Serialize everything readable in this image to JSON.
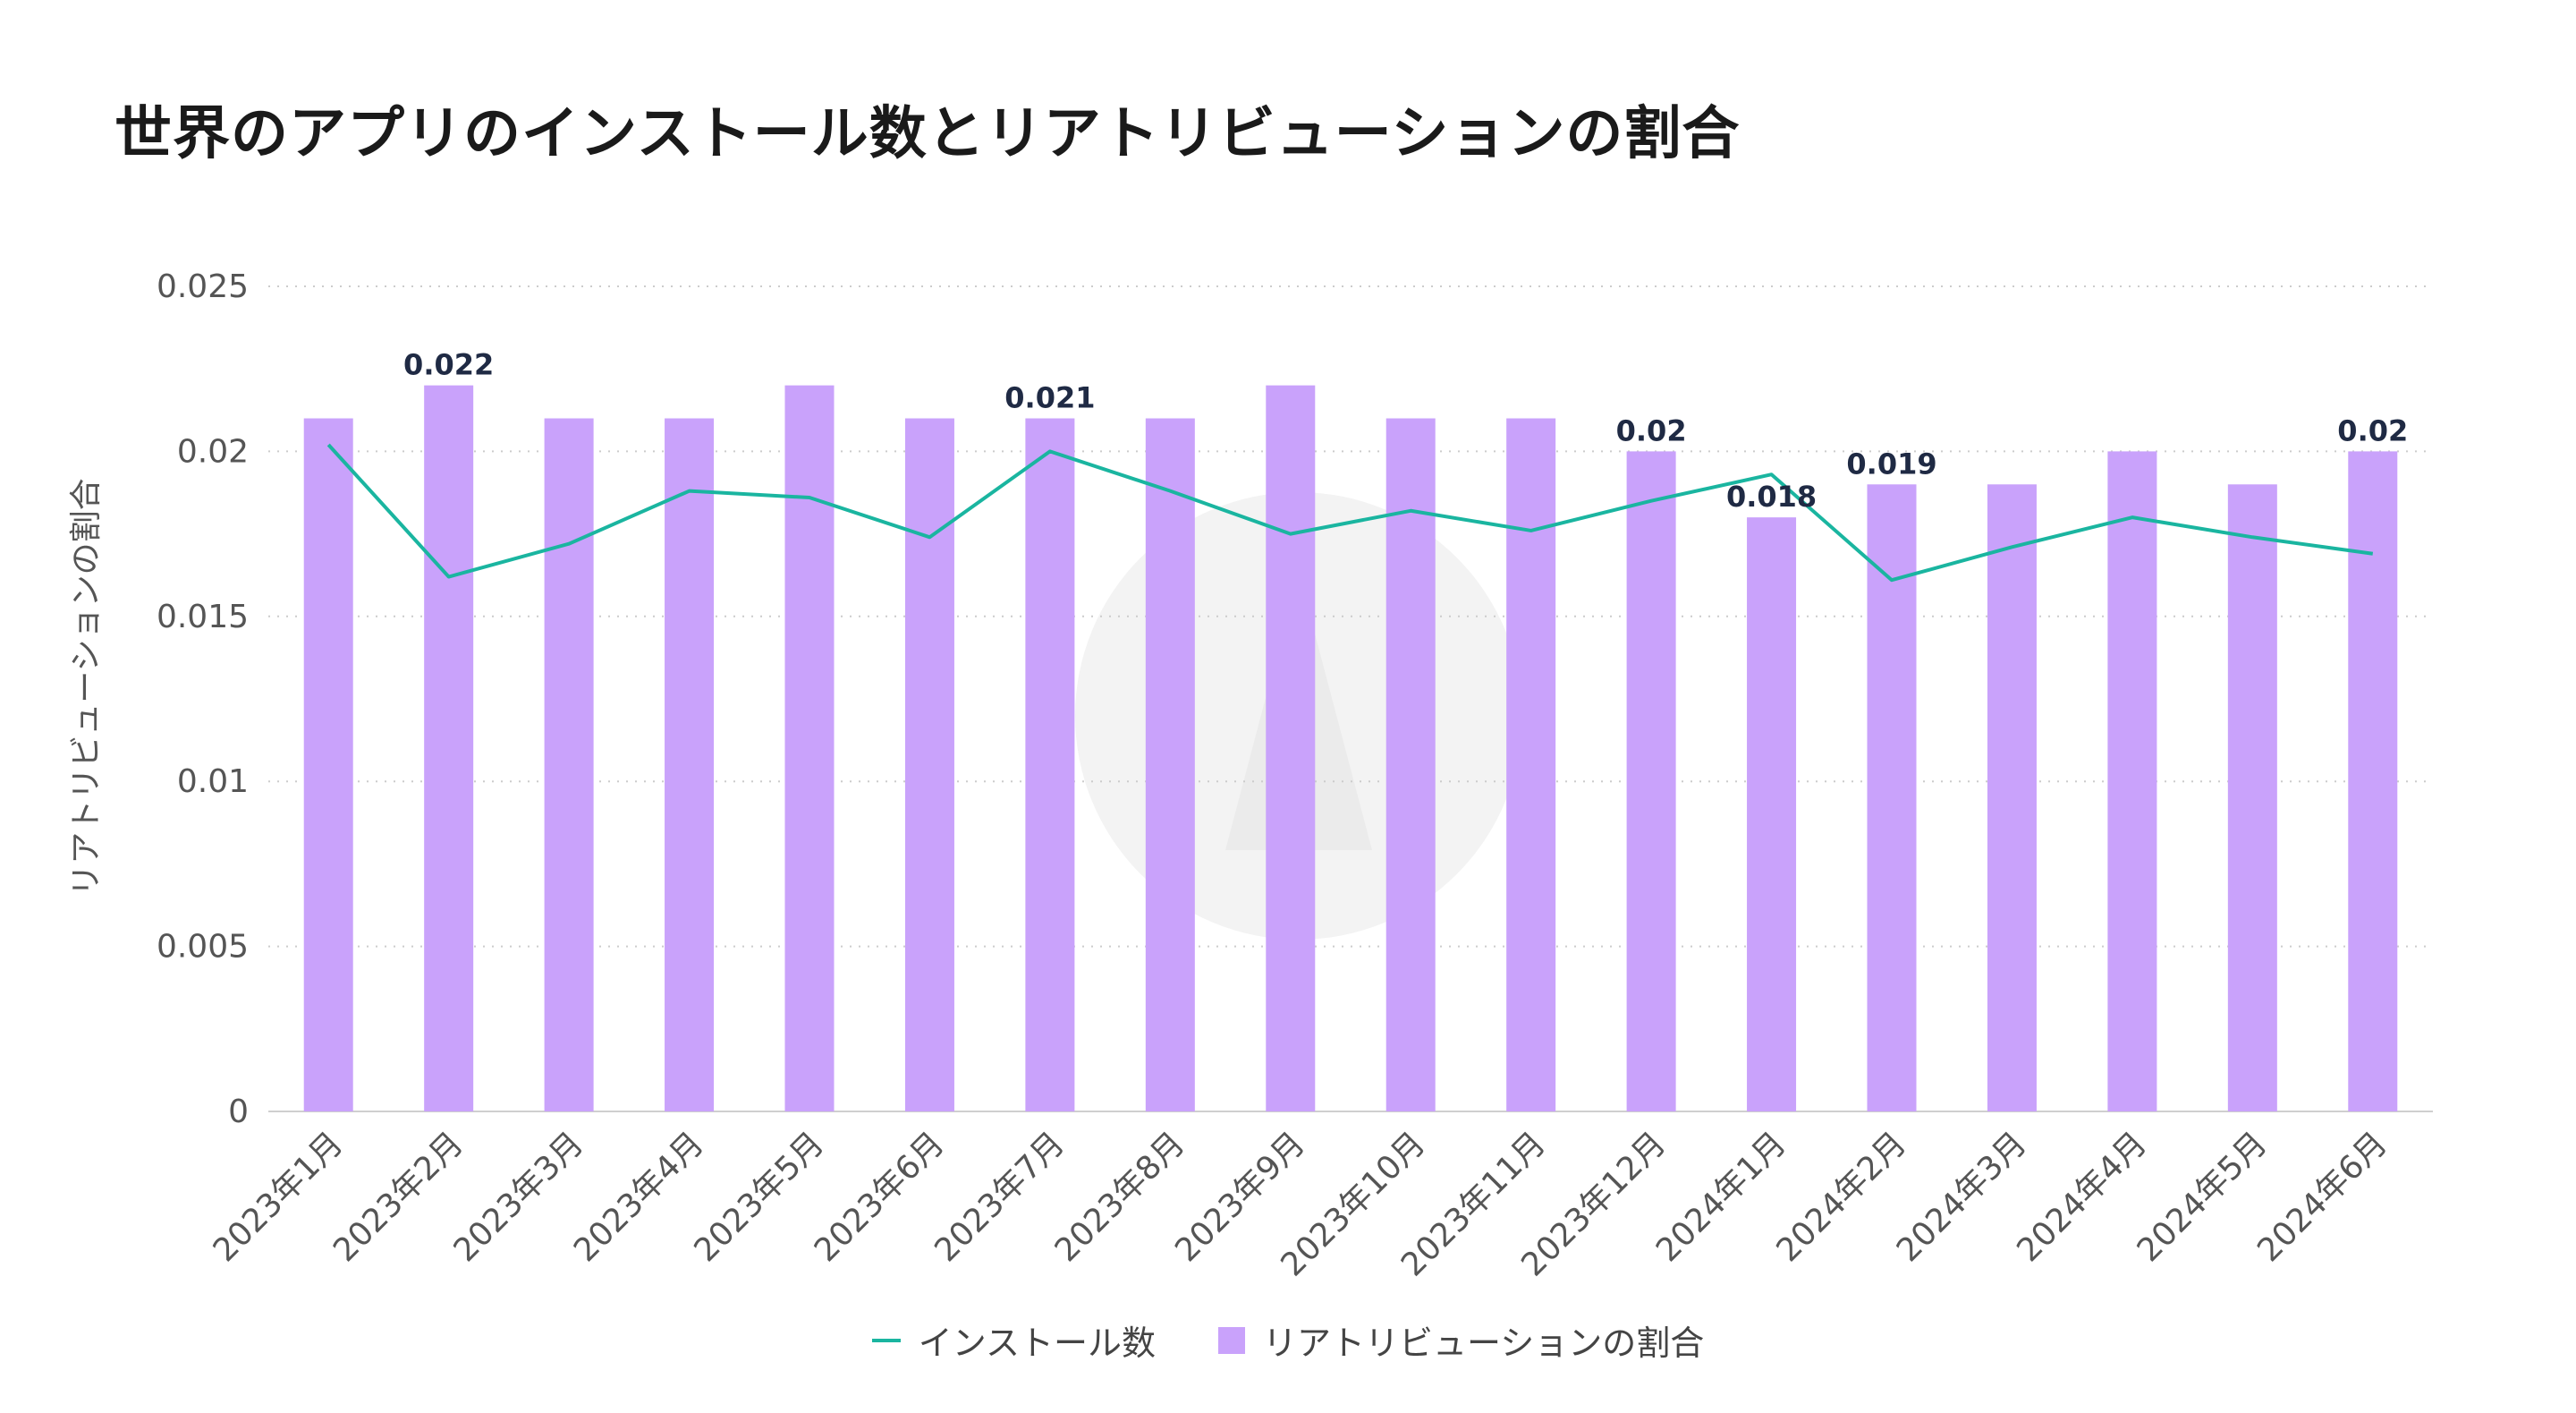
{
  "chart_data": {
    "type": "bar",
    "title": "世界のアプリのインストール数とリアトリビューションの割合",
    "ylabel": "リアトリビューションの割合",
    "ylim": [
      0,
      0.025
    ],
    "yticks": [
      "0",
      "0.005",
      "0.01",
      "0.015",
      "0.02",
      "0.025"
    ],
    "categories": [
      "2023年1月",
      "2023年2月",
      "2023年3月",
      "2023年4月",
      "2023年5月",
      "2023年6月",
      "2023年7月",
      "2023年8月",
      "2023年9月",
      "2023年10月",
      "2023年11月",
      "2023年12月",
      "2024年1月",
      "2024年2月",
      "2024年3月",
      "2024年4月",
      "2024年5月",
      "2024年6月"
    ],
    "series": [
      {
        "name": "リアトリビューションの割合",
        "type": "bar",
        "color": "#c9a2fb",
        "values": [
          0.021,
          0.022,
          0.021,
          0.021,
          0.022,
          0.021,
          0.021,
          0.021,
          0.022,
          0.021,
          0.021,
          0.02,
          0.018,
          0.019,
          0.019,
          0.02,
          0.019,
          0.02
        ]
      },
      {
        "name": "インストール数",
        "type": "line",
        "color": "#1ab5a0",
        "values": [
          0.0202,
          0.0162,
          0.0172,
          0.0188,
          0.0186,
          0.0174,
          0.02,
          0.0188,
          0.0175,
          0.0182,
          0.0176,
          0.0185,
          0.0193,
          0.0161,
          0.0171,
          0.018,
          0.0174,
          0.0169
        ]
      }
    ],
    "data_labels": [
      {
        "index": 1,
        "text": "0.022"
      },
      {
        "index": 6,
        "text": "0.021"
      },
      {
        "index": 11,
        "text": "0.02"
      },
      {
        "index": 12,
        "text": "0.018"
      },
      {
        "index": 13,
        "text": "0.019"
      },
      {
        "index": 17,
        "text": "0.02"
      }
    ],
    "grid": true,
    "legend_position": "bottom-center"
  }
}
